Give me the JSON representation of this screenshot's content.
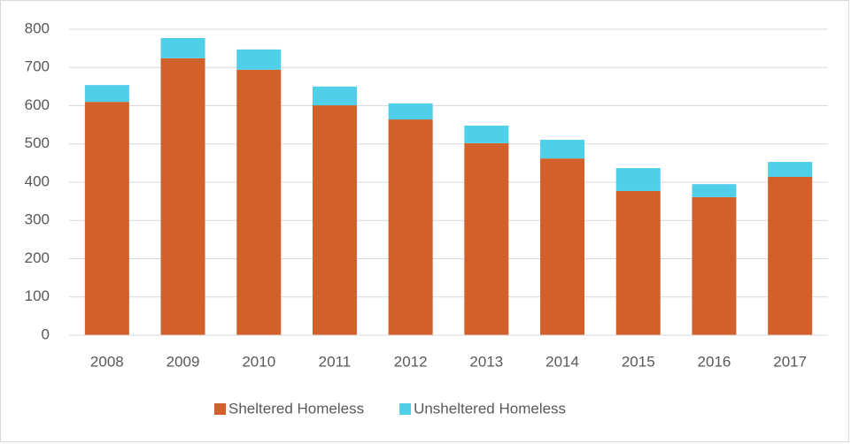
{
  "chart_data": {
    "type": "stacked_bar",
    "categories": [
      "2008",
      "2009",
      "2010",
      "2011",
      "2012",
      "2013",
      "2014",
      "2015",
      "2016",
      "2017"
    ],
    "series": [
      {
        "name": "Sheltered Homeless",
        "color": "#d2602b",
        "values": [
          610,
          724,
          694,
          601,
          564,
          502,
          462,
          377,
          361,
          414
        ]
      },
      {
        "name": "Unsheltered Homeless",
        "color": "#4fcfe8",
        "values": [
          44,
          53,
          53,
          49,
          42,
          46,
          49,
          60,
          34,
          39
        ]
      }
    ],
    "ylim": [
      0,
      800
    ],
    "yticks": [
      0,
      100,
      200,
      300,
      400,
      500,
      600,
      700,
      800
    ],
    "grid": true,
    "legend": "bottom"
  }
}
